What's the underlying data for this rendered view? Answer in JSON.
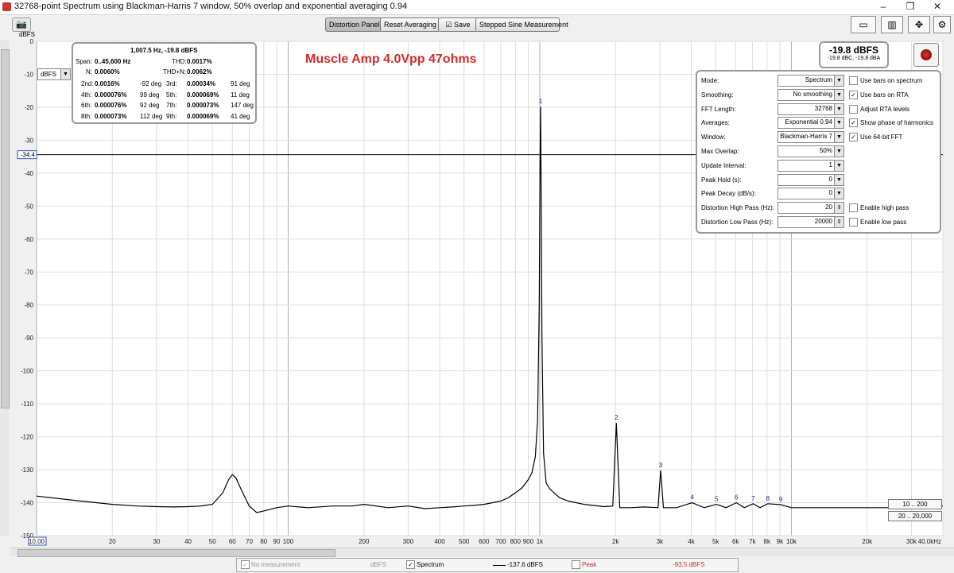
{
  "window": {
    "title": "32768-point Spectrum using Blackman-Harris 7 window, 50% overlap and exponential averaging 0.94",
    "controls": [
      "–",
      "❐",
      "✕"
    ]
  },
  "toolbar": {
    "distortion_panel": "Distortion Panel",
    "reset_averaging": "Reset Averaging",
    "save": "Save",
    "stepped_sine": "Stepped Sine Measurement"
  },
  "unit_label": "dBFS",
  "unit_select": "dBFS",
  "cursor_level": "-34.4",
  "annotation": "Muscle Amp 4.0Vpp 47ohms",
  "distortion": {
    "header": "1,007.5 Hz, -19.8 dBFS",
    "span_label": "Span:",
    "span": "0..45,600 Hz",
    "thd_label": "THD:",
    "thd": "0.0017%",
    "n_label": "N:",
    "n": "0.0060%",
    "thdn_label": "THD+N:",
    "thdn": "0.0062%",
    "harmonics": [
      {
        "label": "2nd:",
        "value": "0.0016%",
        "phase": "-92 deg"
      },
      {
        "label": "3rd:",
        "value": "0.00034%",
        "phase": "91 deg"
      },
      {
        "label": "4th:",
        "value": "0.000076%",
        "phase": "99 deg"
      },
      {
        "label": "5th:",
        "value": "0.000069%",
        "phase": "11 deg"
      },
      {
        "label": "6th:",
        "value": "0.000076%",
        "phase": "92 deg"
      },
      {
        "label": "7th:",
        "value": "0.000073%",
        "phase": "147 deg"
      },
      {
        "label": "8th:",
        "value": "0.000073%",
        "phase": "112 deg"
      },
      {
        "label": "9th:",
        "value": "0.000069%",
        "phase": "41 deg"
      }
    ]
  },
  "level": {
    "main": "-19.8 dBFS",
    "sub": "-19.8 dBC, -19.8 dBA"
  },
  "settings": {
    "rows": [
      {
        "label": "Mode:",
        "value": "Spectrum",
        "check": "Use bars on spectrum",
        "checked": false
      },
      {
        "label": "Smoothing:",
        "value": "No smoothing",
        "check": "Use bars on RTA",
        "checked": true
      },
      {
        "label": "FFT Length:",
        "value": "32768",
        "check": "Adjust RTA levels",
        "checked": false
      },
      {
        "label": "Averages:",
        "value": "Exponential 0.94",
        "check": "Show phase of harmonics",
        "checked": true
      },
      {
        "label": "Window:",
        "value": "Blackman-Harris 7",
        "check": "Use 64-bit FFT",
        "checked": true
      },
      {
        "label": "Max Overlap:",
        "value": "50%",
        "check": "",
        "checked": false
      },
      {
        "label": "Update Interval:",
        "value": "1",
        "check": "",
        "checked": false
      },
      {
        "label": "Peak Hold (s):",
        "value": "0",
        "check": "",
        "checked": false
      },
      {
        "label": "Peak Decay (dB/s):",
        "value": "0",
        "check": "",
        "checked": false
      },
      {
        "label": "Distortion High Pass (Hz):",
        "value": "20",
        "check": "Enable high pass",
        "checked": false
      },
      {
        "label": "Distortion Low Pass (Hz):",
        "value": "20000",
        "check": "Enable low pass",
        "checked": false
      }
    ]
  },
  "ranges": {
    "r1": "10 .. 200",
    "r2": "20 .. 20,000"
  },
  "legend": {
    "no_measurement": "No measurement",
    "unit": "dBFS",
    "spectrum": "Spectrum",
    "spectrum_value": "-137.6 dBFS",
    "peak": "Peak",
    "peak_value": "-93.5 dBFS"
  },
  "colors": {
    "trace": "#000000",
    "annotation": "#d42a2a",
    "harmonic_marker": "#1a1aa0",
    "peak": "#c03030"
  },
  "chart_data": {
    "type": "line",
    "title": "",
    "xlabel": "",
    "ylabel": "dBFS",
    "x_scale": "log",
    "xlim": [
      10,
      40000
    ],
    "ylim": [
      -150,
      0
    ],
    "grid": true,
    "cursor_y": -34.4,
    "y_ticks": [
      0,
      -10,
      -20,
      -30,
      -40,
      -50,
      -60,
      -70,
      -80,
      -90,
      -100,
      -110,
      -120,
      -130,
      -140,
      -150
    ],
    "x_ticks": [
      {
        "v": 10,
        "label": "10.00"
      },
      {
        "v": 20,
        "label": "20"
      },
      {
        "v": 30,
        "label": "30"
      },
      {
        "v": 40,
        "label": "40"
      },
      {
        "v": 50,
        "label": "50"
      },
      {
        "v": 60,
        "label": "60"
      },
      {
        "v": 70,
        "label": "70"
      },
      {
        "v": 80,
        "label": "80"
      },
      {
        "v": 90,
        "label": "90"
      },
      {
        "v": 100,
        "label": "100"
      },
      {
        "v": 200,
        "label": "200"
      },
      {
        "v": 300,
        "label": "300"
      },
      {
        "v": 400,
        "label": "400"
      },
      {
        "v": 500,
        "label": "500"
      },
      {
        "v": 600,
        "label": "600"
      },
      {
        "v": 700,
        "label": "700"
      },
      {
        "v": 800,
        "label": "800"
      },
      {
        "v": 900,
        "label": "900"
      },
      {
        "v": 1000,
        "label": "1k"
      },
      {
        "v": 2000,
        "label": "2k"
      },
      {
        "v": 3000,
        "label": "3k"
      },
      {
        "v": 4000,
        "label": "4k"
      },
      {
        "v": 5000,
        "label": "5k"
      },
      {
        "v": 6000,
        "label": "6k"
      },
      {
        "v": 7000,
        "label": "7k"
      },
      {
        "v": 8000,
        "label": "8k"
      },
      {
        "v": 9000,
        "label": "9k"
      },
      {
        "v": 10000,
        "label": "10k"
      },
      {
        "v": 20000,
        "label": "20k"
      },
      {
        "v": 30000,
        "label": "30k"
      },
      {
        "v": 40000,
        "label": "40.0kHz"
      }
    ],
    "harmonic_markers": [
      {
        "label": "1",
        "x": 1007.5,
        "y": -19.8
      },
      {
        "label": "2",
        "x": 2015,
        "y": -115.8
      },
      {
        "label": "3",
        "x": 3022,
        "y": -130.2
      },
      {
        "label": "4",
        "x": 4030,
        "y": -140
      },
      {
        "label": "5",
        "x": 5037,
        "y": -140.5
      },
      {
        "label": "6",
        "x": 6045,
        "y": -140
      },
      {
        "label": "7",
        "x": 7052,
        "y": -140.3
      },
      {
        "label": "8",
        "x": 8060,
        "y": -140.3
      },
      {
        "label": "9",
        "x": 9067,
        "y": -140.6
      }
    ],
    "series": [
      {
        "x": [
          10,
          15,
          20,
          25,
          30,
          35,
          40,
          45,
          50,
          55,
          58,
          60,
          62,
          65,
          70,
          75,
          80,
          90,
          100,
          120,
          150,
          180,
          200,
          250,
          300,
          350,
          400,
          450,
          500,
          550,
          600,
          650,
          700,
          750,
          800,
          850,
          900,
          930,
          960,
          980,
          995,
          1002,
          1007.5,
          1013,
          1020,
          1035,
          1060,
          1100,
          1200,
          1300,
          1500,
          1800,
          1950,
          2015,
          2080,
          2300,
          2600,
          2950,
          3022,
          3100,
          3500,
          4030,
          4500,
          5037,
          5500,
          6045,
          6500,
          7052,
          7500,
          8060,
          9067,
          10000,
          12000,
          15000,
          20000,
          25000,
          28000,
          30000,
          33000,
          36000,
          40000
        ],
        "y": [
          -138,
          -139.5,
          -140.5,
          -141,
          -141.2,
          -141.3,
          -141.2,
          -141,
          -140.5,
          -137,
          -133,
          -131.5,
          -132.5,
          -136,
          -141,
          -143,
          -142.5,
          -141.5,
          -141,
          -141.5,
          -141,
          -141,
          -140.5,
          -141.5,
          -141,
          -141.8,
          -141.5,
          -141.3,
          -141,
          -140.8,
          -140.5,
          -140,
          -139.5,
          -138.5,
          -137,
          -135.5,
          -133,
          -131,
          -126,
          -115,
          -80,
          -40,
          -19.8,
          -45,
          -90,
          -125,
          -134,
          -136,
          -138.5,
          -139.5,
          -140.5,
          -141.2,
          -141,
          -115.8,
          -141.5,
          -141.5,
          -141.3,
          -141.5,
          -130.2,
          -141.5,
          -141.5,
          -140,
          -141.5,
          -140.5,
          -141.5,
          -140,
          -141.5,
          -140.3,
          -141.5,
          -140.3,
          -140.6,
          -141.5,
          -141.5,
          -141.5,
          -141.5,
          -141.5,
          -140.5,
          -141,
          -139,
          -140.5,
          -141
        ]
      }
    ]
  }
}
